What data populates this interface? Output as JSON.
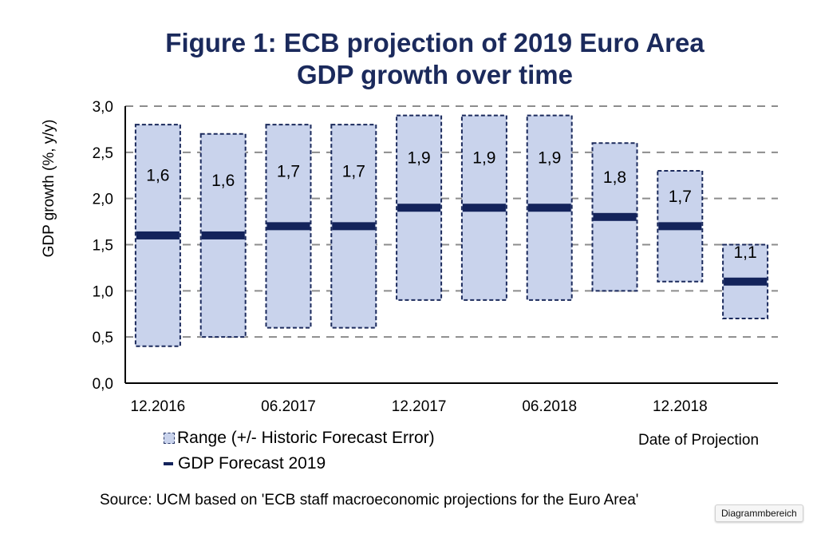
{
  "chart_data": {
    "type": "bar",
    "title_lines": [
      "Figure 1: ECB projection of 2019 Euro Area",
      "GDP growth over time"
    ],
    "ylabel": "GDP growth (%, y/y)",
    "xlabel": "Date of Projection",
    "ylim": [
      0,
      3.0
    ],
    "yticks": [
      "0,0",
      "0,5",
      "1,0",
      "1,5",
      "2,0",
      "2,5",
      "3,0"
    ],
    "ytick_values": [
      0,
      0.5,
      1.0,
      1.5,
      2.0,
      2.5,
      3.0
    ],
    "grid": true,
    "xtick_labels": [
      "12.2016",
      "06.2017",
      "12.2017",
      "06.2018",
      "12.2018"
    ],
    "xtick_positions": [
      0,
      2,
      4,
      6,
      8
    ],
    "series": [
      {
        "name": "Range (+/- Historic Forecast Error)",
        "type": "floating-bar",
        "low": [
          0.4,
          0.5,
          0.6,
          0.6,
          0.9,
          0.9,
          0.9,
          1.0,
          1.1,
          0.7
        ],
        "high": [
          2.8,
          2.7,
          2.8,
          2.8,
          2.9,
          2.9,
          2.9,
          2.6,
          2.3,
          1.5
        ]
      },
      {
        "name": "GDP Forecast 2019",
        "type": "marker-line",
        "values": [
          1.6,
          1.6,
          1.7,
          1.7,
          1.9,
          1.9,
          1.9,
          1.8,
          1.7,
          1.1
        ],
        "labels": [
          "1,6",
          "1,6",
          "1,7",
          "1,7",
          "1,9",
          "1,9",
          "1,9",
          "1,8",
          "1,7",
          "1,1"
        ]
      }
    ],
    "legend": [
      "Range (+/- Historic Forecast Error)",
      "GDP Forecast 2019"
    ],
    "legend_position": "bottom-left",
    "source": "Source: UCM based on 'ECB staff macroeconomic projections for the Euro Area'"
  },
  "colors": {
    "title": "#1b2a5c",
    "range_fill": "#c9d3ec",
    "range_border": "#1b2a5c",
    "forecast": "#13235b",
    "grid": "#8c8c8c"
  },
  "tooltip": "Diagrammbereich"
}
